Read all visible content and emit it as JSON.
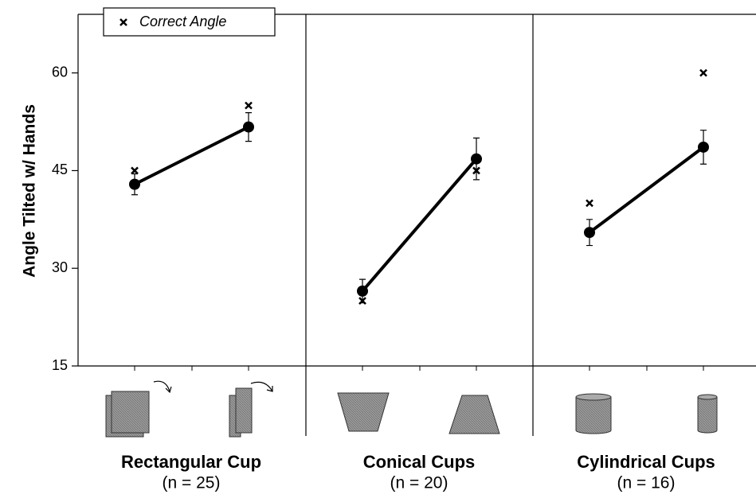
{
  "chart_data": {
    "type": "line",
    "y_label": "Angle Tilted w/ Hands",
    "legend_label": "Correct Angle",
    "color": "#000000",
    "ylim": [
      15,
      69
    ],
    "yticks": [
      15,
      30,
      45,
      60
    ],
    "panels": [
      {
        "title": "Rectangular Cup",
        "subtitle": "(n = 25)",
        "means": [
          42.9,
          51.7
        ],
        "errors": [
          1.6,
          2.2
        ],
        "correct": [
          45,
          55
        ]
      },
      {
        "title": "Conical Cups",
        "subtitle": "(n = 20)",
        "means": [
          26.5,
          46.8
        ],
        "errors": [
          1.8,
          3.2
        ],
        "correct": [
          25,
          45
        ]
      },
      {
        "title": "Cylindrical Cups",
        "subtitle": "(n = 16)",
        "means": [
          35.5,
          48.6
        ],
        "errors": [
          2.0,
          2.6
        ],
        "correct": [
          40,
          60
        ]
      }
    ]
  }
}
